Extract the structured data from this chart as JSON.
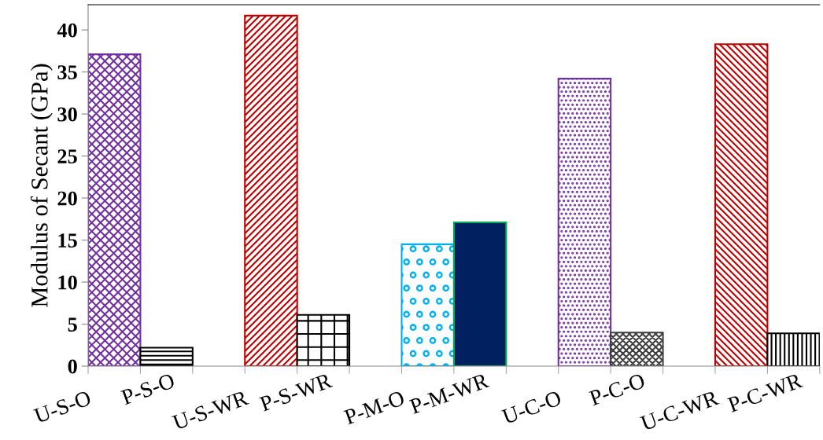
{
  "chart_data": {
    "type": "bar",
    "ylabel": "Modulus of Secant (GPa)",
    "categories": [
      "U-S-O",
      "P-S-O",
      "U-S-WR",
      "P-S-WR",
      "P-M-O",
      "P-M-WR",
      "U-C-O",
      "P-C-O",
      "U-C-WR",
      "P-C-WR"
    ],
    "values": [
      37.1,
      2.2,
      41.7,
      6.1,
      14.5,
      17.1,
      34.2,
      4.0,
      38.3,
      3.9
    ],
    "colors": [
      "#7030a0",
      "#000000",
      "#c00000",
      "#000000",
      "#00b0f0",
      "#002060",
      "#7030a0",
      "#404040",
      "#c00000",
      "#000000"
    ],
    "ylim": [
      0,
      43
    ],
    "yticks": [
      0,
      5,
      10,
      15,
      20,
      25,
      30,
      35,
      40
    ],
    "grid": false
  }
}
